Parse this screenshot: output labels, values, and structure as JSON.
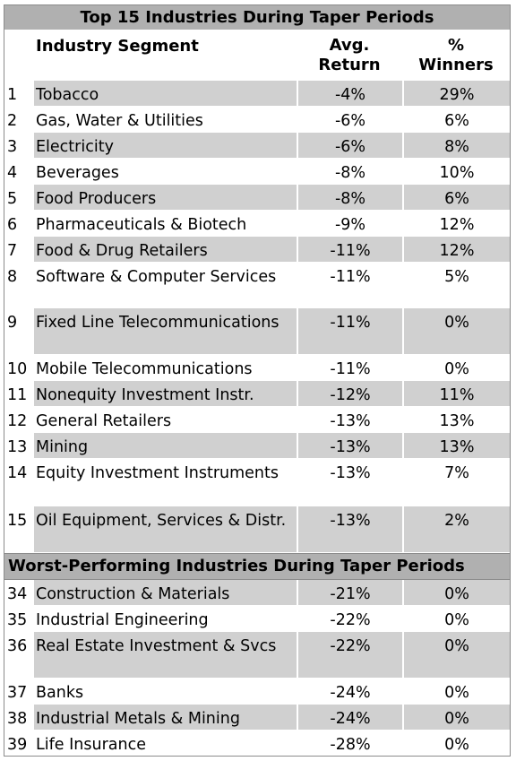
{
  "top_title": "Top 15 Industries During Taper Periods",
  "headers": {
    "segment": "Industry Segment",
    "avg_return_line1": "Avg.",
    "avg_return_line2": "Return",
    "winners_line1": "%",
    "winners_line2": "Winners"
  },
  "top_rows": [
    {
      "rank": "1",
      "segment": "Tobacco",
      "avg_return": "-4%",
      "winners": "29%"
    },
    {
      "rank": "2",
      "segment": "Gas, Water & Utilities",
      "avg_return": "-6%",
      "winners": "6%"
    },
    {
      "rank": "3",
      "segment": "Electricity",
      "avg_return": "-6%",
      "winners": "8%"
    },
    {
      "rank": "4",
      "segment": "Beverages",
      "avg_return": "-8%",
      "winners": "10%"
    },
    {
      "rank": "5",
      "segment": "Food Producers",
      "avg_return": "-8%",
      "winners": "6%"
    },
    {
      "rank": "6",
      "segment": "Pharmaceuticals & Biotech",
      "avg_return": "-9%",
      "winners": "12%"
    },
    {
      "rank": "7",
      "segment": "Food & Drug Retailers",
      "avg_return": "-11%",
      "winners": "12%"
    },
    {
      "rank": "8",
      "segment": "Software & Computer Services",
      "avg_return": "-11%",
      "winners": "5%"
    },
    {
      "rank": "9",
      "segment": "Fixed Line Telecommunications",
      "avg_return": "-11%",
      "winners": "0%"
    },
    {
      "rank": "10",
      "segment": "Mobile Telecommunications",
      "avg_return": "-11%",
      "winners": "0%"
    },
    {
      "rank": "11",
      "segment": "Nonequity Investment Instr.",
      "avg_return": "-12%",
      "winners": "11%"
    },
    {
      "rank": "12",
      "segment": "General Retailers",
      "avg_return": "-13%",
      "winners": "13%"
    },
    {
      "rank": "13",
      "segment": "Mining",
      "avg_return": "-13%",
      "winners": "13%"
    },
    {
      "rank": "14",
      "segment": "Equity Investment Instruments",
      "avg_return": "-13%",
      "winners": "7%"
    },
    {
      "rank": "15",
      "segment": "Oil Equipment, Services & Distr.",
      "avg_return": "-13%",
      "winners": "2%"
    }
  ],
  "worst_title": "Worst-Performing Industries During Taper Periods",
  "worst_rows": [
    {
      "rank": "34",
      "segment": "Construction & Materials",
      "avg_return": "-21%",
      "winners": "0%"
    },
    {
      "rank": "35",
      "segment": "Industrial Engineering",
      "avg_return": "-22%",
      "winners": "0%"
    },
    {
      "rank": "36",
      "segment": "Real Estate Investment & Svcs",
      "avg_return": "-22%",
      "winners": "0%"
    },
    {
      "rank": "37",
      "segment": "Banks",
      "avg_return": "-24%",
      "winners": "0%"
    },
    {
      "rank": "38",
      "segment": "Industrial Metals & Mining",
      "avg_return": "-24%",
      "winners": "0%"
    },
    {
      "rank": "39",
      "segment": "Life Insurance",
      "avg_return": "-28%",
      "winners": "0%"
    }
  ],
  "colors": {
    "title_band": "#b0b0b0",
    "row_shade": "#d0d0d0",
    "border": "#8c8c8c"
  }
}
